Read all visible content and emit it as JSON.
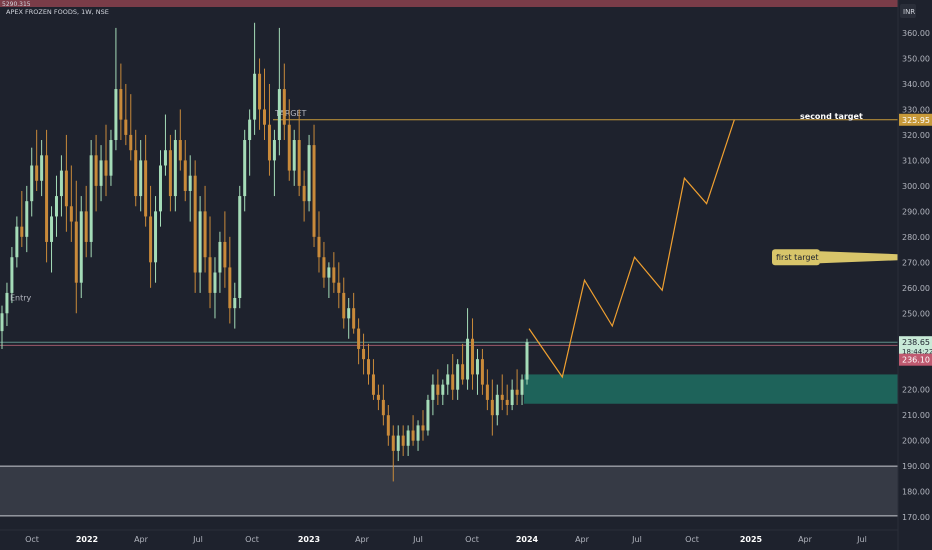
{
  "header": {
    "badge": "5290.315",
    "title": "APEX FROZEN FOODS, 1W, NSE",
    "currency": "INR"
  },
  "chart_data": {
    "type": "candlestick",
    "symbol": "APEX FROZEN FOODS",
    "interval": "1W",
    "exchange": "NSE",
    "y_ticks": [
      360,
      350,
      340,
      330,
      320,
      310,
      300,
      290,
      280,
      270,
      260,
      250,
      220,
      210,
      200,
      190,
      180,
      170
    ],
    "ylim": [
      166,
      373
    ],
    "x_ticks": [
      {
        "label": "Oct",
        "bold": false
      },
      {
        "label": "2022",
        "bold": true
      },
      {
        "label": "Apr",
        "bold": false
      },
      {
        "label": "Jul",
        "bold": false
      },
      {
        "label": "Oct",
        "bold": false
      },
      {
        "label": "2023",
        "bold": true
      },
      {
        "label": "Apr",
        "bold": false
      },
      {
        "label": "Jul",
        "bold": false
      },
      {
        "label": "Oct",
        "bold": false
      },
      {
        "label": "2024",
        "bold": true
      },
      {
        "label": "Apr",
        "bold": false
      },
      {
        "label": "Jul",
        "bold": false
      },
      {
        "label": "Oct",
        "bold": false
      },
      {
        "label": "2025",
        "bold": true
      },
      {
        "label": "Apr",
        "bold": false
      },
      {
        "label": "Jul",
        "bold": false
      }
    ],
    "price_labels": {
      "target": "325.95",
      "last": "238.65",
      "countdown": "18:44:22",
      "prev": "236.10"
    },
    "annotations": {
      "target_line_label": "TARGET",
      "second_target": "second target",
      "first_target": "first target",
      "entry": "Entry"
    },
    "levels": {
      "target": 325.95,
      "last": 238.65,
      "prev": 236.1,
      "entry": 237.4,
      "support_top": 190,
      "support_bottom": 170.5
    },
    "demand_zone": {
      "top": 226,
      "bottom": 214.5
    },
    "projection": [
      {
        "week": 0,
        "price": 244
      },
      {
        "week": 6,
        "price": 225
      },
      {
        "week": 10,
        "price": 263
      },
      {
        "week": 15,
        "price": 245
      },
      {
        "week": 19,
        "price": 272
      },
      {
        "week": 24,
        "price": 259
      },
      {
        "week": 28,
        "price": 303
      },
      {
        "week": 32,
        "price": 293
      },
      {
        "week": 37,
        "price": 326
      }
    ],
    "candles": [
      [
        243,
        253,
        236,
        250
      ],
      [
        250,
        262,
        245,
        258
      ],
      [
        258,
        276,
        254,
        272
      ],
      [
        272,
        288,
        268,
        284
      ],
      [
        284,
        298,
        276,
        280
      ],
      [
        280,
        300,
        274,
        294
      ],
      [
        294,
        315,
        288,
        308
      ],
      [
        308,
        322,
        298,
        302
      ],
      [
        302,
        318,
        296,
        312
      ],
      [
        312,
        322,
        270,
        278
      ],
      [
        278,
        292,
        266,
        288
      ],
      [
        288,
        304,
        280,
        296
      ],
      [
        296,
        312,
        288,
        306
      ],
      [
        306,
        320,
        282,
        292
      ],
      [
        292,
        308,
        278,
        286
      ],
      [
        286,
        302,
        250,
        262
      ],
      [
        262,
        296,
        256,
        290
      ],
      [
        290,
        300,
        272,
        278
      ],
      [
        278,
        318,
        272,
        312
      ],
      [
        312,
        320,
        290,
        300
      ],
      [
        300,
        316,
        294,
        310
      ],
      [
        310,
        324,
        296,
        304
      ],
      [
        304,
        322,
        300,
        318
      ],
      [
        318,
        362,
        314,
        338
      ],
      [
        338,
        348,
        318,
        326
      ],
      [
        326,
        340,
        316,
        320
      ],
      [
        320,
        336,
        310,
        314
      ],
      [
        314,
        322,
        292,
        296
      ],
      [
        296,
        318,
        290,
        310
      ],
      [
        310,
        320,
        284,
        288
      ],
      [
        288,
        300,
        260,
        270
      ],
      [
        270,
        296,
        262,
        290
      ],
      [
        290,
        314,
        284,
        308
      ],
      [
        308,
        328,
        304,
        314
      ],
      [
        314,
        320,
        290,
        296
      ],
      [
        296,
        322,
        290,
        318
      ],
      [
        318,
        330,
        306,
        310
      ],
      [
        310,
        318,
        294,
        298
      ],
      [
        298,
        312,
        286,
        304
      ],
      [
        304,
        310,
        258,
        266
      ],
      [
        266,
        296,
        258,
        290
      ],
      [
        290,
        300,
        266,
        272
      ],
      [
        272,
        288,
        252,
        258
      ],
      [
        258,
        272,
        248,
        266
      ],
      [
        266,
        282,
        258,
        278
      ],
      [
        278,
        290,
        260,
        268
      ],
      [
        268,
        280,
        246,
        252
      ],
      [
        252,
        262,
        244,
        256
      ],
      [
        256,
        300,
        252,
        296
      ],
      [
        296,
        322,
        290,
        318
      ],
      [
        318,
        330,
        304,
        326
      ],
      [
        326,
        364,
        320,
        344
      ],
      [
        344,
        350,
        322,
        330
      ],
      [
        330,
        346,
        318,
        324
      ],
      [
        324,
        340,
        304,
        310
      ],
      [
        310,
        322,
        296,
        318
      ],
      [
        318,
        362,
        312,
        338
      ],
      [
        338,
        348,
        318,
        324
      ],
      [
        324,
        334,
        302,
        306
      ],
      [
        306,
        322,
        300,
        318
      ],
      [
        318,
        330,
        296,
        300
      ],
      [
        300,
        306,
        286,
        294
      ],
      [
        294,
        320,
        290,
        316
      ],
      [
        316,
        324,
        276,
        280
      ],
      [
        280,
        290,
        266,
        272
      ],
      [
        272,
        278,
        260,
        264
      ],
      [
        264,
        270,
        256,
        268
      ],
      [
        268,
        274,
        258,
        262
      ],
      [
        262,
        270,
        252,
        258
      ],
      [
        258,
        264,
        244,
        248
      ],
      [
        248,
        256,
        240,
        252
      ],
      [
        252,
        258,
        242,
        244
      ],
      [
        244,
        248,
        230,
        236
      ],
      [
        236,
        242,
        226,
        232
      ],
      [
        232,
        238,
        222,
        226
      ],
      [
        226,
        232,
        216,
        218
      ],
      [
        218,
        222,
        212,
        216
      ],
      [
        216,
        222,
        206,
        210
      ],
      [
        210,
        214,
        198,
        202
      ],
      [
        202,
        206,
        184,
        196
      ],
      [
        196,
        206,
        192,
        202
      ],
      [
        202,
        206,
        194,
        198
      ],
      [
        198,
        206,
        194,
        204
      ],
      [
        204,
        210,
        198,
        200
      ],
      [
        200,
        208,
        196,
        206
      ],
      [
        206,
        212,
        200,
        204
      ],
      [
        204,
        218,
        202,
        216
      ],
      [
        216,
        226,
        210,
        222
      ],
      [
        222,
        228,
        214,
        218
      ],
      [
        218,
        224,
        214,
        222
      ],
      [
        222,
        230,
        218,
        226
      ],
      [
        226,
        234,
        216,
        220
      ],
      [
        220,
        232,
        216,
        230
      ],
      [
        230,
        238,
        222,
        224
      ],
      [
        224,
        252,
        220,
        240
      ],
      [
        240,
        248,
        220,
        226
      ],
      [
        226,
        236,
        218,
        232
      ],
      [
        232,
        236,
        218,
        222
      ],
      [
        222,
        228,
        212,
        216
      ],
      [
        216,
        224,
        202,
        210
      ],
      [
        210,
        222,
        206,
        218
      ],
      [
        218,
        226,
        212,
        216
      ],
      [
        216,
        222,
        210,
        214
      ],
      [
        214,
        224,
        212,
        220
      ],
      [
        220,
        228,
        214,
        218
      ],
      [
        218,
        226,
        214,
        224
      ],
      [
        224,
        240,
        222,
        238.65
      ]
    ]
  }
}
